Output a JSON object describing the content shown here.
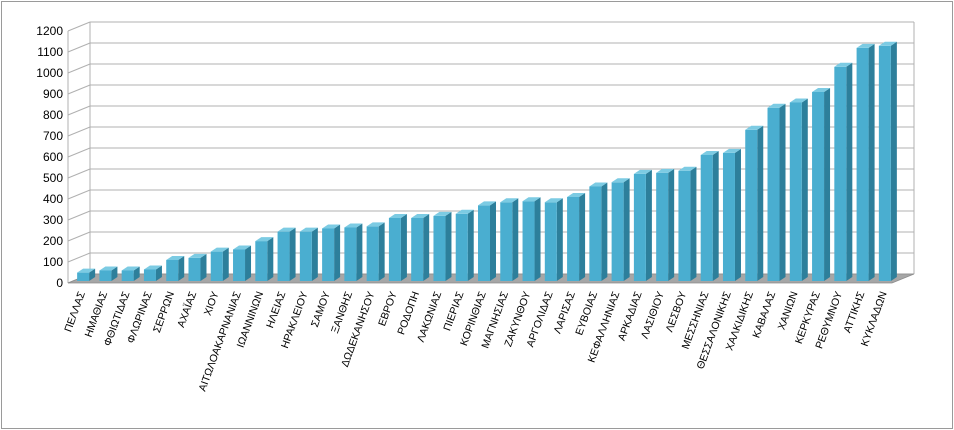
{
  "chart_data": {
    "type": "bar",
    "categories": [
      "ΠΕΛΛΑΣ",
      "ΗΜΑΘΙΑΣ",
      "ΦΘΙΩΤΙΔΑΣ",
      "ΦΛΩΡΙΝΑΣ",
      "ΣΕΡΡΩΝ",
      "ΑΧΑΪΑΣ",
      "ΧΙΟΥ",
      "ΑΙΤΩΛΟΑΚΑΡΝΑΝΙΑΣ",
      "ΙΩΑΝΝΙΝΩΝ",
      "ΗΛΕΙΑΣ",
      "ΗΡΑΚΛΕΙΟΥ",
      "ΣΑΜΟΥ",
      "ΞΑΝΘΗΣ",
      "ΔΩΔΕΚΑΝΗΣΟΥ",
      "ΕΒΡΟΥ",
      "ΡΟΔΟΠΗ",
      "ΛΑΚΩΝΙΑΣ",
      "ΠΙΕΡΙΑΣ",
      "ΚΟΡΙΝΘΙΑΣ",
      "ΜΑΓΝΗΣΙΑΣ",
      "ΖΑΚΥΝΘΟΥ",
      "ΑΡΓΟΛΙΔΑΣ",
      "ΛΑΡΙΣΑΣ",
      "ΕΥΒΟΙΑΣ",
      "ΚΕΦΑΛΛΗΝΙΑΣ",
      "ΑΡΚΑΔΙΑΣ",
      "ΛΑΣΙΘΙΟΥ",
      "ΛΕΣΒΟΥ",
      "ΜΕΣΣΗΝΙΑΣ",
      "ΘΕΣΣΑΛΟΝΙΚΗΣ",
      "ΧΑΛΚΙΔΙΚΗΣ",
      "ΚΑΒΑΛΑΣ",
      "ΧΑΝΙΩΝ",
      "ΚΕΡΚΥΡΑΣ",
      "ΡΕΘΥΜΝΟΥ",
      "ΑΤΤΙΚΗΣ",
      "ΚΥΚΛΑΔΩΝ"
    ],
    "values": [
      40,
      50,
      50,
      55,
      100,
      110,
      140,
      150,
      190,
      235,
      235,
      250,
      255,
      260,
      300,
      300,
      310,
      320,
      360,
      375,
      380,
      375,
      400,
      450,
      470,
      510,
      515,
      525,
      600,
      610,
      720,
      825,
      850,
      900,
      1020,
      1110,
      1120
    ],
    "ylim": [
      0,
      1200
    ],
    "yticks": [
      0,
      100,
      200,
      300,
      400,
      500,
      600,
      700,
      800,
      900,
      1000,
      1100,
      1200
    ],
    "grid": true,
    "legend": "none",
    "colors": {
      "bar_front": "#4aaed0",
      "bar_side": "#2d7f9b",
      "bar_top": "#7ccbe3",
      "grid": "#b0b0b0",
      "floor": "#a6a6a6"
    }
  }
}
